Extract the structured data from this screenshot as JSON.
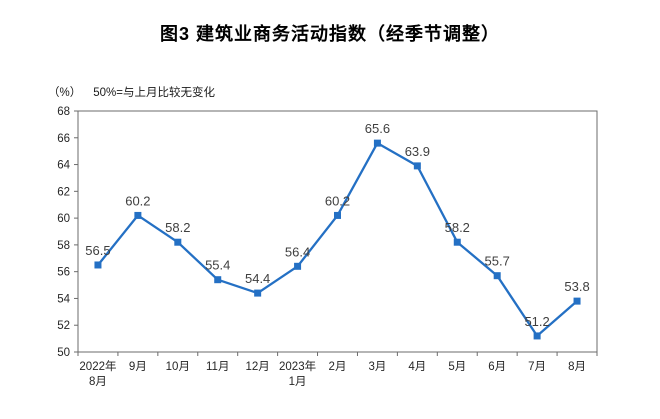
{
  "header": {
    "title": "图3  建筑业商务活动指数（经季节调整）"
  },
  "axis_note": {
    "unit": "（%）",
    "text": "50%=与上月比较无变化"
  },
  "chart_data": {
    "type": "line",
    "title": "图3 建筑业商务活动指数（经季节调整）",
    "series_name": "建筑业商务活动指数",
    "categories": [
      [
        "2022年",
        "8月"
      ],
      [
        "9月"
      ],
      [
        "10月"
      ],
      [
        "11月"
      ],
      [
        "12月"
      ],
      [
        "2023年",
        "1月"
      ],
      [
        "2月"
      ],
      [
        "3月"
      ],
      [
        "4月"
      ],
      [
        "5月"
      ],
      [
        "6月"
      ],
      [
        "7月"
      ],
      [
        "8月"
      ]
    ],
    "values": [
      56.5,
      60.2,
      58.2,
      55.4,
      54.4,
      56.4,
      60.2,
      65.6,
      63.9,
      58.2,
      55.7,
      51.2,
      53.8
    ],
    "ylabel": "（%）",
    "xlabel": "",
    "ylim": [
      50,
      68
    ],
    "ytick_step": 2,
    "grid": false,
    "legend_position": "none",
    "marker": "square",
    "colors": {
      "line": "#2470C4",
      "marker": "#2470C4",
      "data_label": "#3f3f3f",
      "axis_border": "#6b6b6b",
      "tick_label": "#262626"
    }
  }
}
